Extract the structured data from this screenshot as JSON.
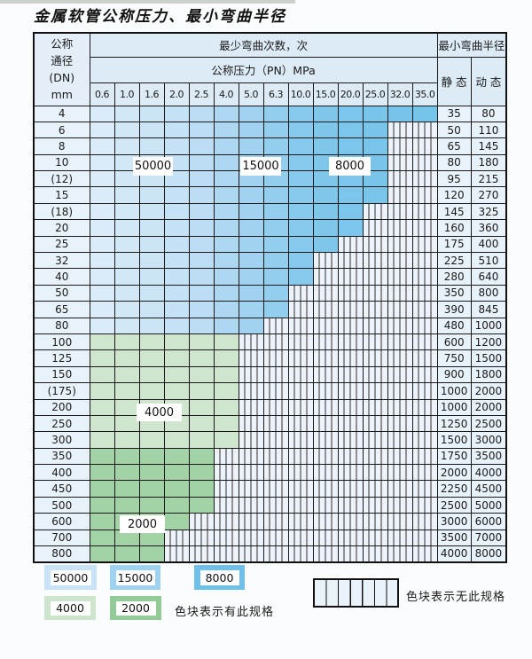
{
  "title": "金属软管公称压力、最小弯曲半径",
  "table": {
    "header": {
      "dn_label_lines": [
        "公称",
        "通径",
        "(DN)",
        "mm"
      ],
      "cycles_header": "最少弯曲次数，次",
      "pressure_header": "公称压力（PN）MPa",
      "pressure_columns": [
        "0.6",
        "1.0",
        "1.6",
        "2.0",
        "2.5",
        "4.0",
        "5.0",
        "6.3",
        "10.0",
        "15.0",
        "20.0",
        "25.0",
        "32.0",
        "35.0"
      ],
      "radius_header": "最小弯曲半径",
      "static_label": "静 态",
      "dynamic_label": "动 态"
    },
    "rows": [
      {
        "dn": "4",
        "zone": "blue",
        "colored_cols": 14,
        "max_pressure": "35.0",
        "static": "35",
        "dynamic": "80"
      },
      {
        "dn": "6",
        "zone": "blue",
        "colored_cols": 12,
        "max_pressure": "25.0",
        "static": "50",
        "dynamic": "110"
      },
      {
        "dn": "8",
        "zone": "blue",
        "colored_cols": 12,
        "max_pressure": "25.0",
        "static": "65",
        "dynamic": "145"
      },
      {
        "dn": "10",
        "zone": "blue",
        "colored_cols": 12,
        "max_pressure": "25.0",
        "static": "80",
        "dynamic": "180"
      },
      {
        "dn": "(12)",
        "zone": "blue",
        "colored_cols": 12,
        "max_pressure": "25.0",
        "static": "95",
        "dynamic": "215"
      },
      {
        "dn": "15",
        "zone": "blue",
        "colored_cols": 12,
        "max_pressure": "25.0",
        "static": "120",
        "dynamic": "270"
      },
      {
        "dn": "(18)",
        "zone": "blue",
        "colored_cols": 11,
        "max_pressure": "20.0",
        "static": "145",
        "dynamic": "325"
      },
      {
        "dn": "20",
        "zone": "blue",
        "colored_cols": 11,
        "max_pressure": "20.0",
        "static": "160",
        "dynamic": "360"
      },
      {
        "dn": "25",
        "zone": "blue",
        "colored_cols": 10,
        "max_pressure": "15.0",
        "static": "175",
        "dynamic": "400"
      },
      {
        "dn": "32",
        "zone": "blue",
        "colored_cols": 9,
        "max_pressure": "10.0",
        "static": "225",
        "dynamic": "510"
      },
      {
        "dn": "40",
        "zone": "blue",
        "colored_cols": 9,
        "max_pressure": "10.0",
        "static": "280",
        "dynamic": "640"
      },
      {
        "dn": "50",
        "zone": "blue",
        "colored_cols": 8,
        "max_pressure": "6.3",
        "static": "350",
        "dynamic": "800"
      },
      {
        "dn": "65",
        "zone": "blue",
        "colored_cols": 8,
        "max_pressure": "6.3",
        "static": "390",
        "dynamic": "845"
      },
      {
        "dn": "80",
        "zone": "blue",
        "colored_cols": 7,
        "max_pressure": "5.0",
        "static": "480",
        "dynamic": "1000"
      },
      {
        "dn": "100",
        "zone": "green_4000",
        "colored_cols": 6,
        "max_pressure": "4.0",
        "static": "600",
        "dynamic": "1200"
      },
      {
        "dn": "125",
        "zone": "green_4000",
        "colored_cols": 6,
        "max_pressure": "4.0",
        "static": "750",
        "dynamic": "1500"
      },
      {
        "dn": "150",
        "zone": "green_4000",
        "colored_cols": 6,
        "max_pressure": "4.0",
        "static": "900",
        "dynamic": "1800"
      },
      {
        "dn": "(175)",
        "zone": "green_4000",
        "colored_cols": 6,
        "max_pressure": "4.0",
        "static": "1000",
        "dynamic": "2000"
      },
      {
        "dn": "200",
        "zone": "green_4000",
        "colored_cols": 6,
        "max_pressure": "4.0",
        "static": "1000",
        "dynamic": "2000"
      },
      {
        "dn": "250",
        "zone": "green_4000",
        "colored_cols": 6,
        "max_pressure": "4.0",
        "static": "1250",
        "dynamic": "2500"
      },
      {
        "dn": "300",
        "zone": "green_4000",
        "colored_cols": 6,
        "max_pressure": "4.0",
        "static": "1500",
        "dynamic": "3000"
      },
      {
        "dn": "350",
        "zone": "green_2000",
        "colored_cols": 5,
        "max_pressure": "2.5",
        "static": "1750",
        "dynamic": "3500"
      },
      {
        "dn": "400",
        "zone": "green_2000",
        "colored_cols": 5,
        "max_pressure": "2.5",
        "static": "2000",
        "dynamic": "4000"
      },
      {
        "dn": "450",
        "zone": "green_2000",
        "colored_cols": 5,
        "max_pressure": "2.5",
        "static": "2250",
        "dynamic": "4500"
      },
      {
        "dn": "500",
        "zone": "green_2000",
        "colored_cols": 5,
        "max_pressure": "2.5",
        "static": "2500",
        "dynamic": "5000"
      },
      {
        "dn": "600",
        "zone": "green_2000",
        "colored_cols": 4,
        "max_pressure": "2.0",
        "static": "3000",
        "dynamic": "6000"
      },
      {
        "dn": "700",
        "zone": "green_2000",
        "colored_cols": 3,
        "max_pressure": "1.6",
        "static": "3500",
        "dynamic": "7000"
      },
      {
        "dn": "800",
        "zone": "green_2000",
        "colored_cols": 3,
        "max_pressure": "1.6",
        "static": "4000",
        "dynamic": "8000"
      }
    ],
    "blue_cycle_zones_by_column": {
      "50000": [
        "0.6",
        "1.0",
        "1.6",
        "2.0",
        "2.5"
      ],
      "15000": [
        "4.0",
        "5.0",
        "6.3"
      ],
      "8000": [
        "10.0",
        "15.0",
        "20.0",
        "25.0",
        "32.0",
        "35.0"
      ]
    }
  },
  "overlay_labels": [
    "50000",
    "15000",
    "8000",
    "4000",
    "2000"
  ],
  "legend": {
    "swatches": [
      {
        "label": "50000",
        "color": "#c9e3f6"
      },
      {
        "label": "15000",
        "color": "#9fd2f0"
      },
      {
        "label": "8000",
        "color": "#6fc0e8"
      },
      {
        "label": "4000",
        "color": "#cde5cc"
      },
      {
        "label": "2000",
        "color": "#92cb97"
      }
    ],
    "has_spec_text": "色块表示有此规格",
    "no_spec_text": "色块表示无此规格"
  },
  "colors": {
    "blue_ramp": [
      "#daecf8",
      "#d3e8f7",
      "#cce5f6",
      "#c4e1f5",
      "#bcddf3",
      "#aed8f2",
      "#a1d3f0",
      "#94ceee",
      "#86c9ec",
      "#7ec7eb",
      "#7bc6ea",
      "#79c5ea",
      "#78c4e9",
      "#77c4e9"
    ],
    "green_4000": "#cfe5ce",
    "green_2000": "#a3d2a7",
    "hatch_bg": "#edf3fa",
    "hatch_line": "#2e2e2e"
  }
}
